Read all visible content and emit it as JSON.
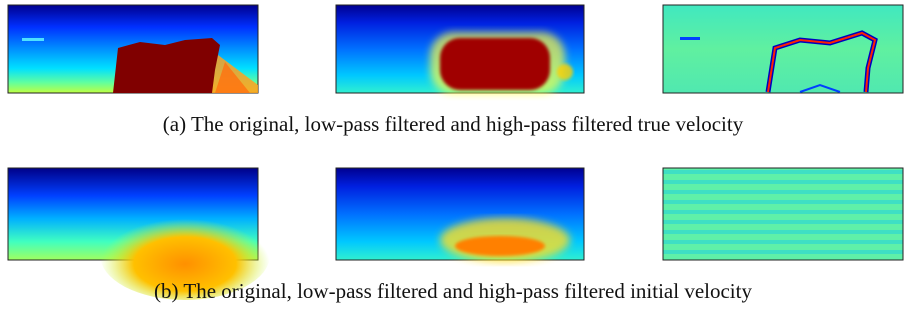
{
  "figure": {
    "captions": [
      "(a) The original, low-pass filtered and high-pass filtered true velocity",
      "(b) The original, low-pass filtered and high-pass filtered initial velocity"
    ]
  }
}
